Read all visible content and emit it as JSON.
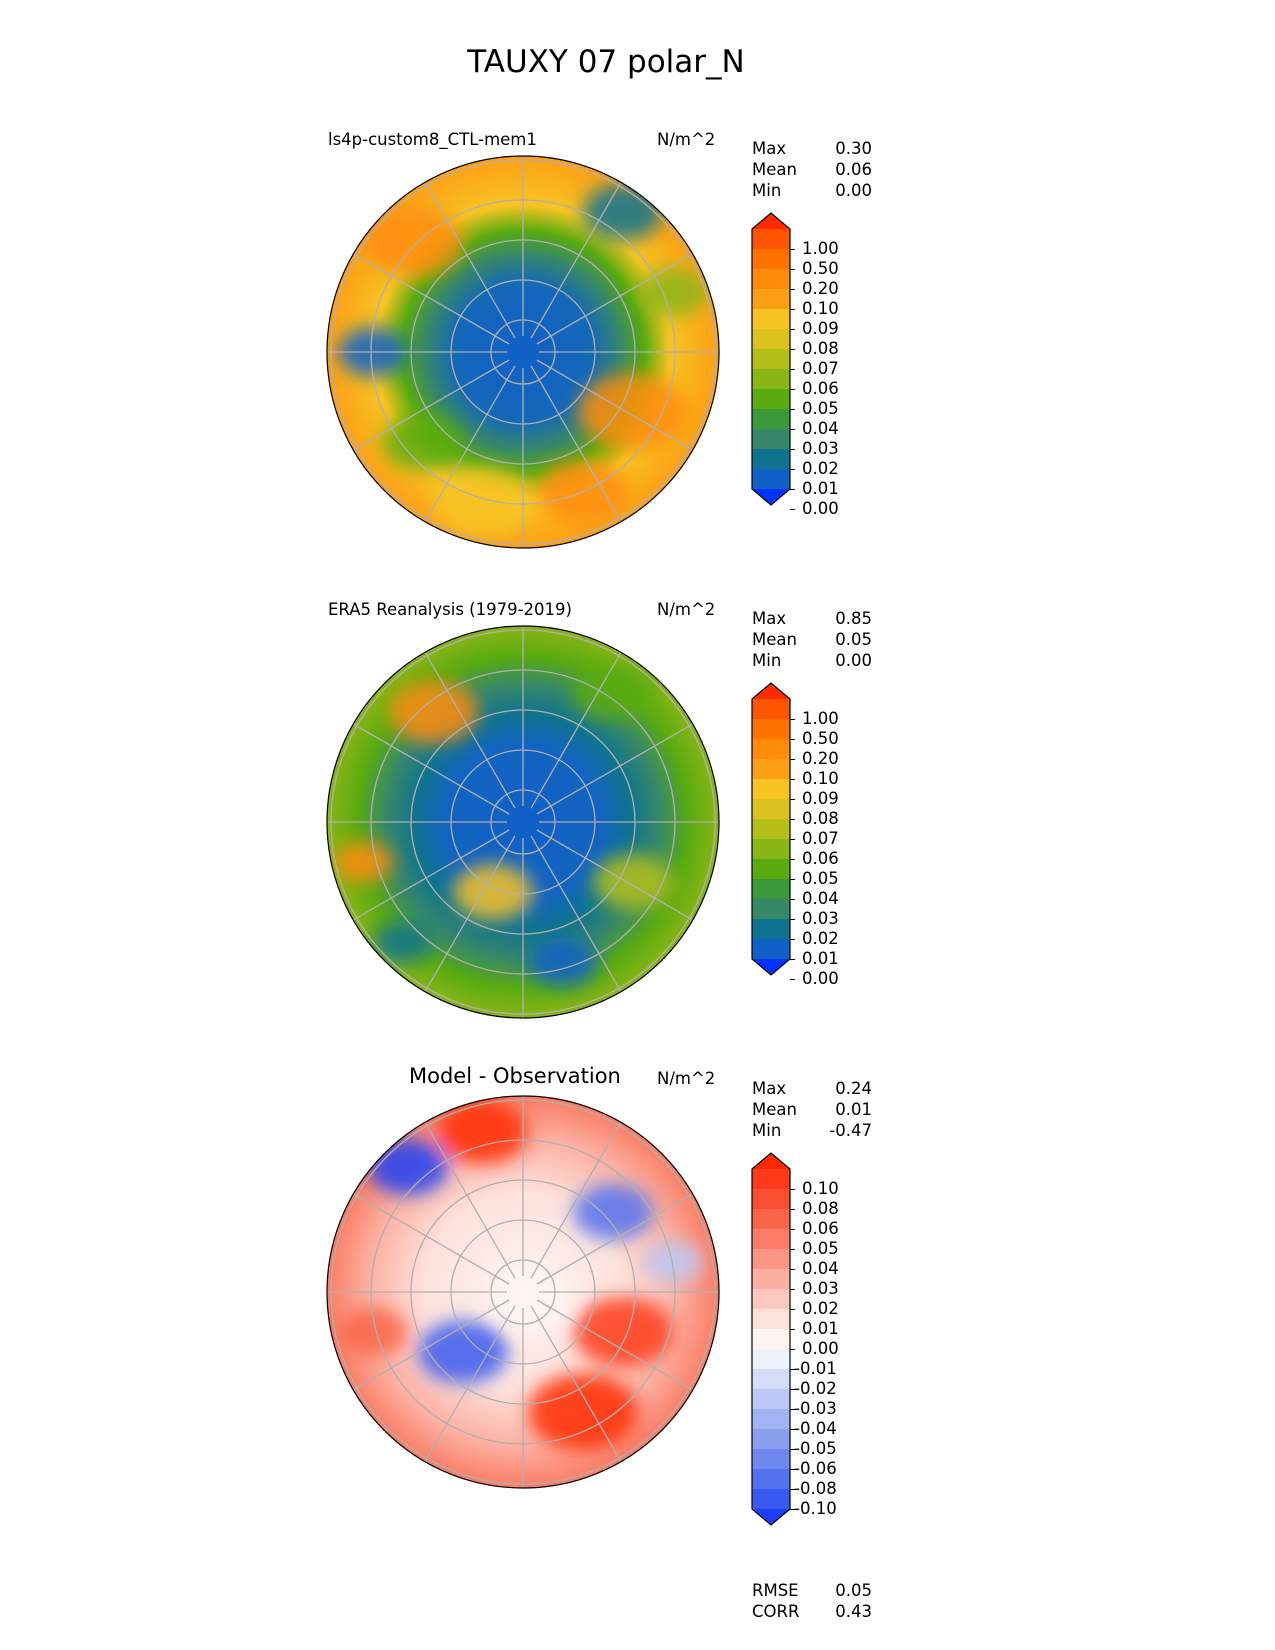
{
  "title": "TAUXY 07 polar_N",
  "panels": [
    {
      "title": "ls4p-custom8_CTL-mem1",
      "units": "N/m^2",
      "stats": [
        {
          "label": "Max",
          "value": "0.30"
        },
        {
          "label": "Mean",
          "value": "0.06"
        },
        {
          "label": "Min",
          "value": "0.00"
        }
      ],
      "colorbar": {
        "ticks": [
          "1.00",
          "0.50",
          "0.20",
          "0.10",
          "0.09",
          "0.08",
          "0.07",
          "0.06",
          "0.05",
          "0.04",
          "0.03",
          "0.02",
          "0.01",
          "0.00"
        ],
        "colors": [
          "#ff2a00",
          "#ff5500",
          "#ff7200",
          "#ff8c0a",
          "#fd9f15",
          "#f7c423",
          "#dcc21f",
          "#b5bf1a",
          "#8ab516",
          "#5aab10",
          "#3a9a3a",
          "#378868",
          "#0f7390",
          "#1060c8",
          "#0032ff"
        ]
      }
    },
    {
      "title": "ERA5 Reanalysis (1979-2019)",
      "units": "N/m^2",
      "stats": [
        {
          "label": "Max",
          "value": "0.85"
        },
        {
          "label": "Mean",
          "value": "0.05"
        },
        {
          "label": "Min",
          "value": "0.00"
        }
      ],
      "colorbar": {
        "ticks": [
          "1.00",
          "0.50",
          "0.20",
          "0.10",
          "0.09",
          "0.08",
          "0.07",
          "0.06",
          "0.05",
          "0.04",
          "0.03",
          "0.02",
          "0.01",
          "0.00"
        ],
        "colors": [
          "#ff2a00",
          "#ff5500",
          "#ff7200",
          "#ff8c0a",
          "#fd9f15",
          "#f7c423",
          "#dcc21f",
          "#b5bf1a",
          "#8ab516",
          "#5aab10",
          "#3a9a3a",
          "#378868",
          "#0f7390",
          "#1060c8",
          "#0032ff"
        ]
      }
    },
    {
      "title": "Model - Observation",
      "units": "N/m^2",
      "stats": [
        {
          "label": "Max",
          "value": "0.24"
        },
        {
          "label": "Mean",
          "value": "0.01"
        },
        {
          "label": "Min",
          "value": "-0.47"
        }
      ],
      "colorbar": {
        "ticks": [
          "0.10",
          "0.08",
          "0.06",
          "0.05",
          "0.04",
          "0.03",
          "0.02",
          "0.01",
          "0.00",
          "-0.01",
          "-0.02",
          "-0.03",
          "-0.04",
          "-0.05",
          "-0.06",
          "-0.08",
          "-0.10"
        ],
        "colors": [
          "#ff2a00",
          "#ff3a1a",
          "#fb4d30",
          "#f96548",
          "#fa7c64",
          "#fb9583",
          "#fcaea0",
          "#fdc8bf",
          "#fee2dc",
          "#fff4f2",
          "#eef0fb",
          "#d6dcf8",
          "#bcc8f6",
          "#a2b3f3",
          "#8a9ef0",
          "#6f88ee",
          "#5572ee",
          "#3a5af0",
          "#1c3ff5"
        ]
      },
      "footer": [
        {
          "label": "RMSE",
          "value": "0.05"
        },
        {
          "label": "CORR",
          "value": "0.43"
        }
      ]
    }
  ]
}
